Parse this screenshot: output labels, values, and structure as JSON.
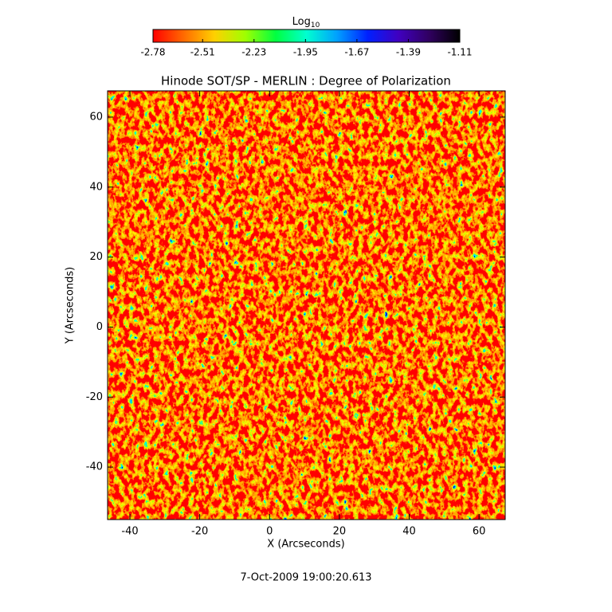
{
  "chart_data": {
    "type": "heatmap",
    "title": "Hinode SOT/SP - MERLIN : Degree of Polarization",
    "xlabel": "X (Arcseconds)",
    "ylabel": "Y (Arcseconds)",
    "footer": "7-Oct-2009 19:00:20.613",
    "xlim": [
      -46.4,
      67.5
    ],
    "xticks": [
      -40,
      -20,
      0,
      20,
      40,
      60
    ],
    "ylim": [
      -55,
      67.5
    ],
    "yticks": [
      -40,
      -20,
      0,
      20,
      40,
      60
    ],
    "colorbar": {
      "label": "Log",
      "label_subscript": "10",
      "lim": [
        -2.78,
        -1.11
      ],
      "ticks": [
        -2.78,
        -2.51,
        -2.23,
        -1.95,
        -1.67,
        -1.39,
        -1.11
      ],
      "colors": [
        "#ff0000",
        "#ff6a00",
        "#ffd000",
        "#a0ff00",
        "#00ff40",
        "#00ffd0",
        "#00a0ff",
        "#0020ff",
        "#4000c0",
        "#300060",
        "#000000"
      ]
    }
  }
}
